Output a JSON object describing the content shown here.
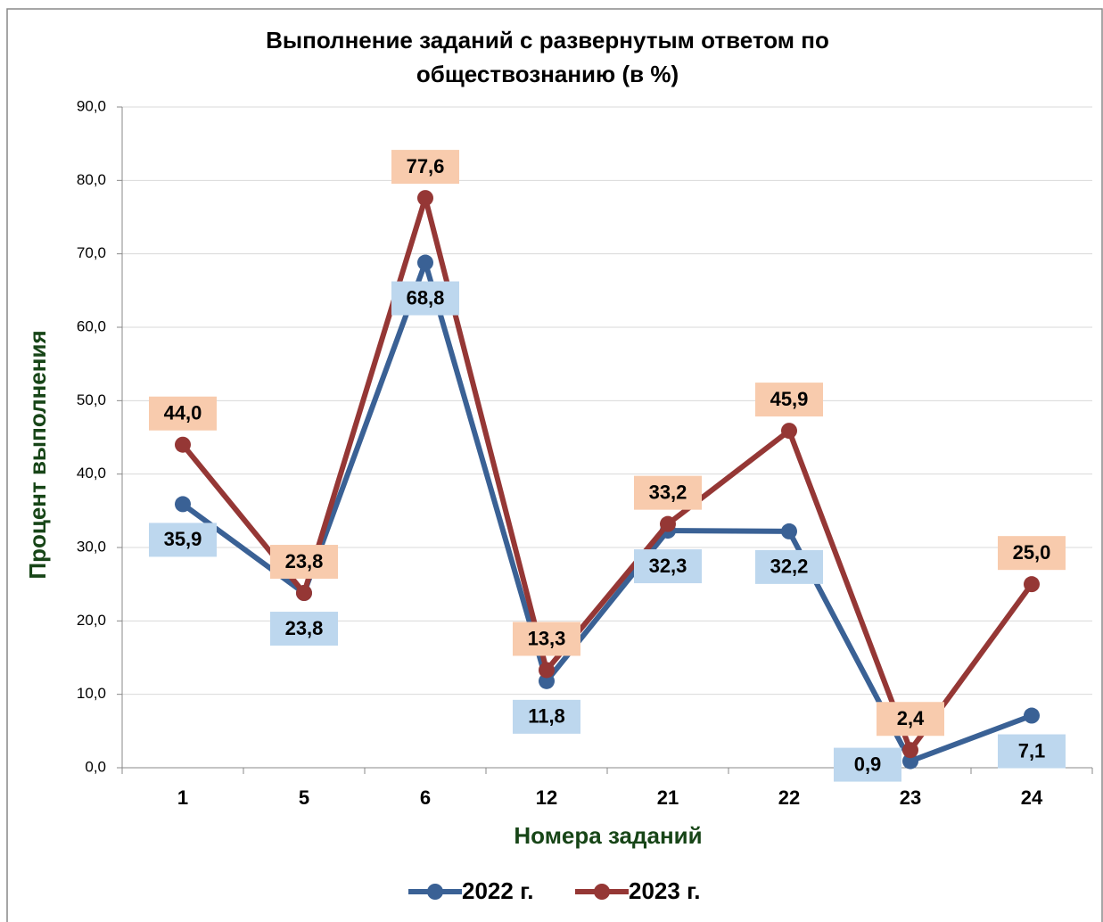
{
  "chart_data": {
    "type": "line",
    "title": [
      "Выполнение заданий с развернутым ответом по",
      "обществознанию (в %)"
    ],
    "x_label": "Номера заданий",
    "y_label": "Процент выполнения",
    "categories": [
      "1",
      "5",
      "6",
      "12",
      "21",
      "22",
      "23",
      "24"
    ],
    "series": [
      {
        "name": "2022 г.",
        "color": "#3a6195",
        "label_color": "#bdd7ee",
        "values": [
          35.9,
          23.8,
          68.8,
          11.8,
          32.3,
          32.2,
          0.9,
          7.1
        ],
        "value_labels": [
          "35,9",
          "23,8",
          "68,8",
          "11,8",
          "32,3",
          "32,2",
          "0,9",
          "7,1"
        ]
      },
      {
        "name": "2023 г.",
        "color": "#953735",
        "label_color": "#f8cbad",
        "values": [
          44.0,
          23.8,
          77.6,
          13.3,
          33.2,
          45.9,
          2.4,
          25.0
        ],
        "value_labels": [
          "44,0",
          "23,8",
          "77,6",
          "13,3",
          "33,2",
          "45,9",
          "2,4",
          "25,0"
        ]
      }
    ],
    "ylim": [
      0,
      90
    ],
    "yticks": [
      {
        "value": 0,
        "label": "0,0"
      },
      {
        "value": 10,
        "label": "10,0"
      },
      {
        "value": 20,
        "label": "20,0"
      },
      {
        "value": 30,
        "label": "30,0"
      },
      {
        "value": 40,
        "label": "40,0"
      },
      {
        "value": 50,
        "label": "50,0"
      },
      {
        "value": 60,
        "label": "60,0"
      },
      {
        "value": 70,
        "label": "70,0"
      },
      {
        "value": 80,
        "label": "80,0"
      },
      {
        "value": 90,
        "label": "90,0"
      }
    ],
    "grid": true,
    "legend": "bottom"
  }
}
